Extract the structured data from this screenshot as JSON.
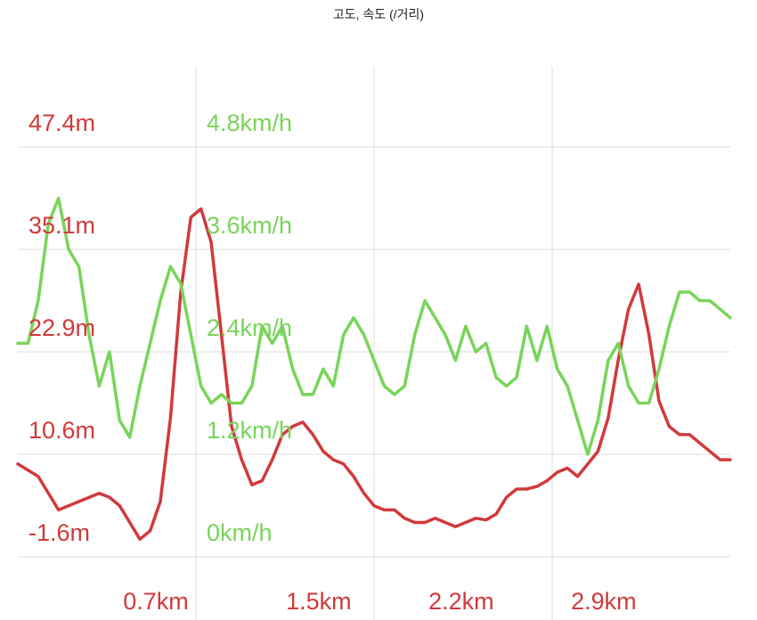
{
  "chart_data": {
    "type": "line",
    "title": "고도, 속도 (/거리)",
    "x_tick_labels": [
      "0.7km",
      "1.5km",
      "2.2km",
      "2.9km"
    ],
    "x_ticks": [
      0.7,
      1.5,
      2.2,
      2.9
    ],
    "xlim": [
      0.0,
      3.5
    ],
    "grid": true,
    "y_left": {
      "tick_labels": [
        "-1.6m",
        "10.6m",
        "22.9m",
        "35.1m",
        "47.4m"
      ],
      "ticks": [
        -1.6,
        10.6,
        22.9,
        35.1,
        47.4
      ],
      "ylim": [
        -1.6,
        47.4
      ],
      "color": "#d2393b"
    },
    "y_right": {
      "tick_labels": [
        "0km/h",
        "1.2km/h",
        "2.4km/h",
        "3.6km/h",
        "4.8km/h"
      ],
      "ticks": [
        0,
        1.2,
        2.4,
        3.6,
        4.8
      ],
      "ylim": [
        0,
        4.8
      ],
      "color": "#79d45a"
    },
    "series": [
      {
        "axis": "left",
        "color": "#d2393b",
        "x": [
          0.0,
          0.1,
          0.2,
          0.3,
          0.4,
          0.45,
          0.5,
          0.55,
          0.6,
          0.65,
          0.7,
          0.75,
          0.8,
          0.85,
          0.9,
          0.95,
          1.0,
          1.05,
          1.1,
          1.15,
          1.2,
          1.25,
          1.3,
          1.35,
          1.4,
          1.45,
          1.5,
          1.55,
          1.6,
          1.65,
          1.7,
          1.75,
          1.8,
          1.85,
          1.9,
          1.95,
          2.0,
          2.05,
          2.1,
          2.15,
          2.2,
          2.25,
          2.3,
          2.35,
          2.4,
          2.45,
          2.5,
          2.55,
          2.6,
          2.65,
          2.7,
          2.75,
          2.8,
          2.85,
          2.9,
          2.95,
          3.0,
          3.05,
          3.1,
          3.15,
          3.2,
          3.25,
          3.3,
          3.35,
          3.4,
          3.45,
          3.5
        ],
        "y": [
          9.5,
          8,
          4,
          5,
          6,
          5.5,
          4.5,
          2.5,
          0.5,
          1.5,
          5,
          15,
          30,
          39,
          40,
          36,
          25,
          14,
          10,
          7,
          7.5,
          10,
          13,
          14,
          14.5,
          13,
          11,
          10,
          9.5,
          8,
          6,
          4.5,
          4,
          4,
          3,
          2.5,
          2.5,
          3,
          2.5,
          2,
          2.5,
          3,
          2.8,
          3.5,
          5.5,
          6.5,
          6.5,
          6.8,
          7.5,
          8.5,
          9,
          8,
          9.5,
          11,
          15,
          22,
          28,
          31,
          25,
          17,
          14,
          13,
          13,
          12,
          11,
          10,
          10
        ]
      },
      {
        "axis": "right",
        "color": "#79d45a",
        "x": [
          0.0,
          0.05,
          0.1,
          0.15,
          0.2,
          0.25,
          0.3,
          0.35,
          0.4,
          0.45,
          0.5,
          0.55,
          0.6,
          0.65,
          0.7,
          0.75,
          0.8,
          0.85,
          0.9,
          0.95,
          1.0,
          1.05,
          1.1,
          1.15,
          1.2,
          1.25,
          1.3,
          1.35,
          1.4,
          1.45,
          1.5,
          1.55,
          1.6,
          1.65,
          1.7,
          1.75,
          1.8,
          1.85,
          1.9,
          1.95,
          2.0,
          2.05,
          2.1,
          2.15,
          2.2,
          2.25,
          2.3,
          2.35,
          2.4,
          2.45,
          2.5,
          2.55,
          2.6,
          2.65,
          2.7,
          2.75,
          2.8,
          2.85,
          2.9,
          2.95,
          3.0,
          3.05,
          3.1,
          3.15,
          3.2,
          3.25,
          3.3,
          3.35,
          3.4,
          3.45,
          3.5
        ],
        "y": [
          2.5,
          2.5,
          3.0,
          3.9,
          4.2,
          3.6,
          3.4,
          2.6,
          2.0,
          2.4,
          1.6,
          1.4,
          2.0,
          2.5,
          3.0,
          3.4,
          3.2,
          2.6,
          2.0,
          1.8,
          1.9,
          1.8,
          1.8,
          2.0,
          2.7,
          2.5,
          2.7,
          2.2,
          1.9,
          1.9,
          2.2,
          2.0,
          2.6,
          2.8,
          2.6,
          2.3,
          2.0,
          1.9,
          2.0,
          2.6,
          3.0,
          2.8,
          2.6,
          2.3,
          2.7,
          2.4,
          2.5,
          2.1,
          2.0,
          2.1,
          2.7,
          2.3,
          2.7,
          2.2,
          2.0,
          1.6,
          1.2,
          1.6,
          2.3,
          2.5,
          2.0,
          1.8,
          1.8,
          2.2,
          2.7,
          3.1,
          3.1,
          3.0,
          3.0,
          2.9,
          2.8
        ]
      }
    ]
  }
}
